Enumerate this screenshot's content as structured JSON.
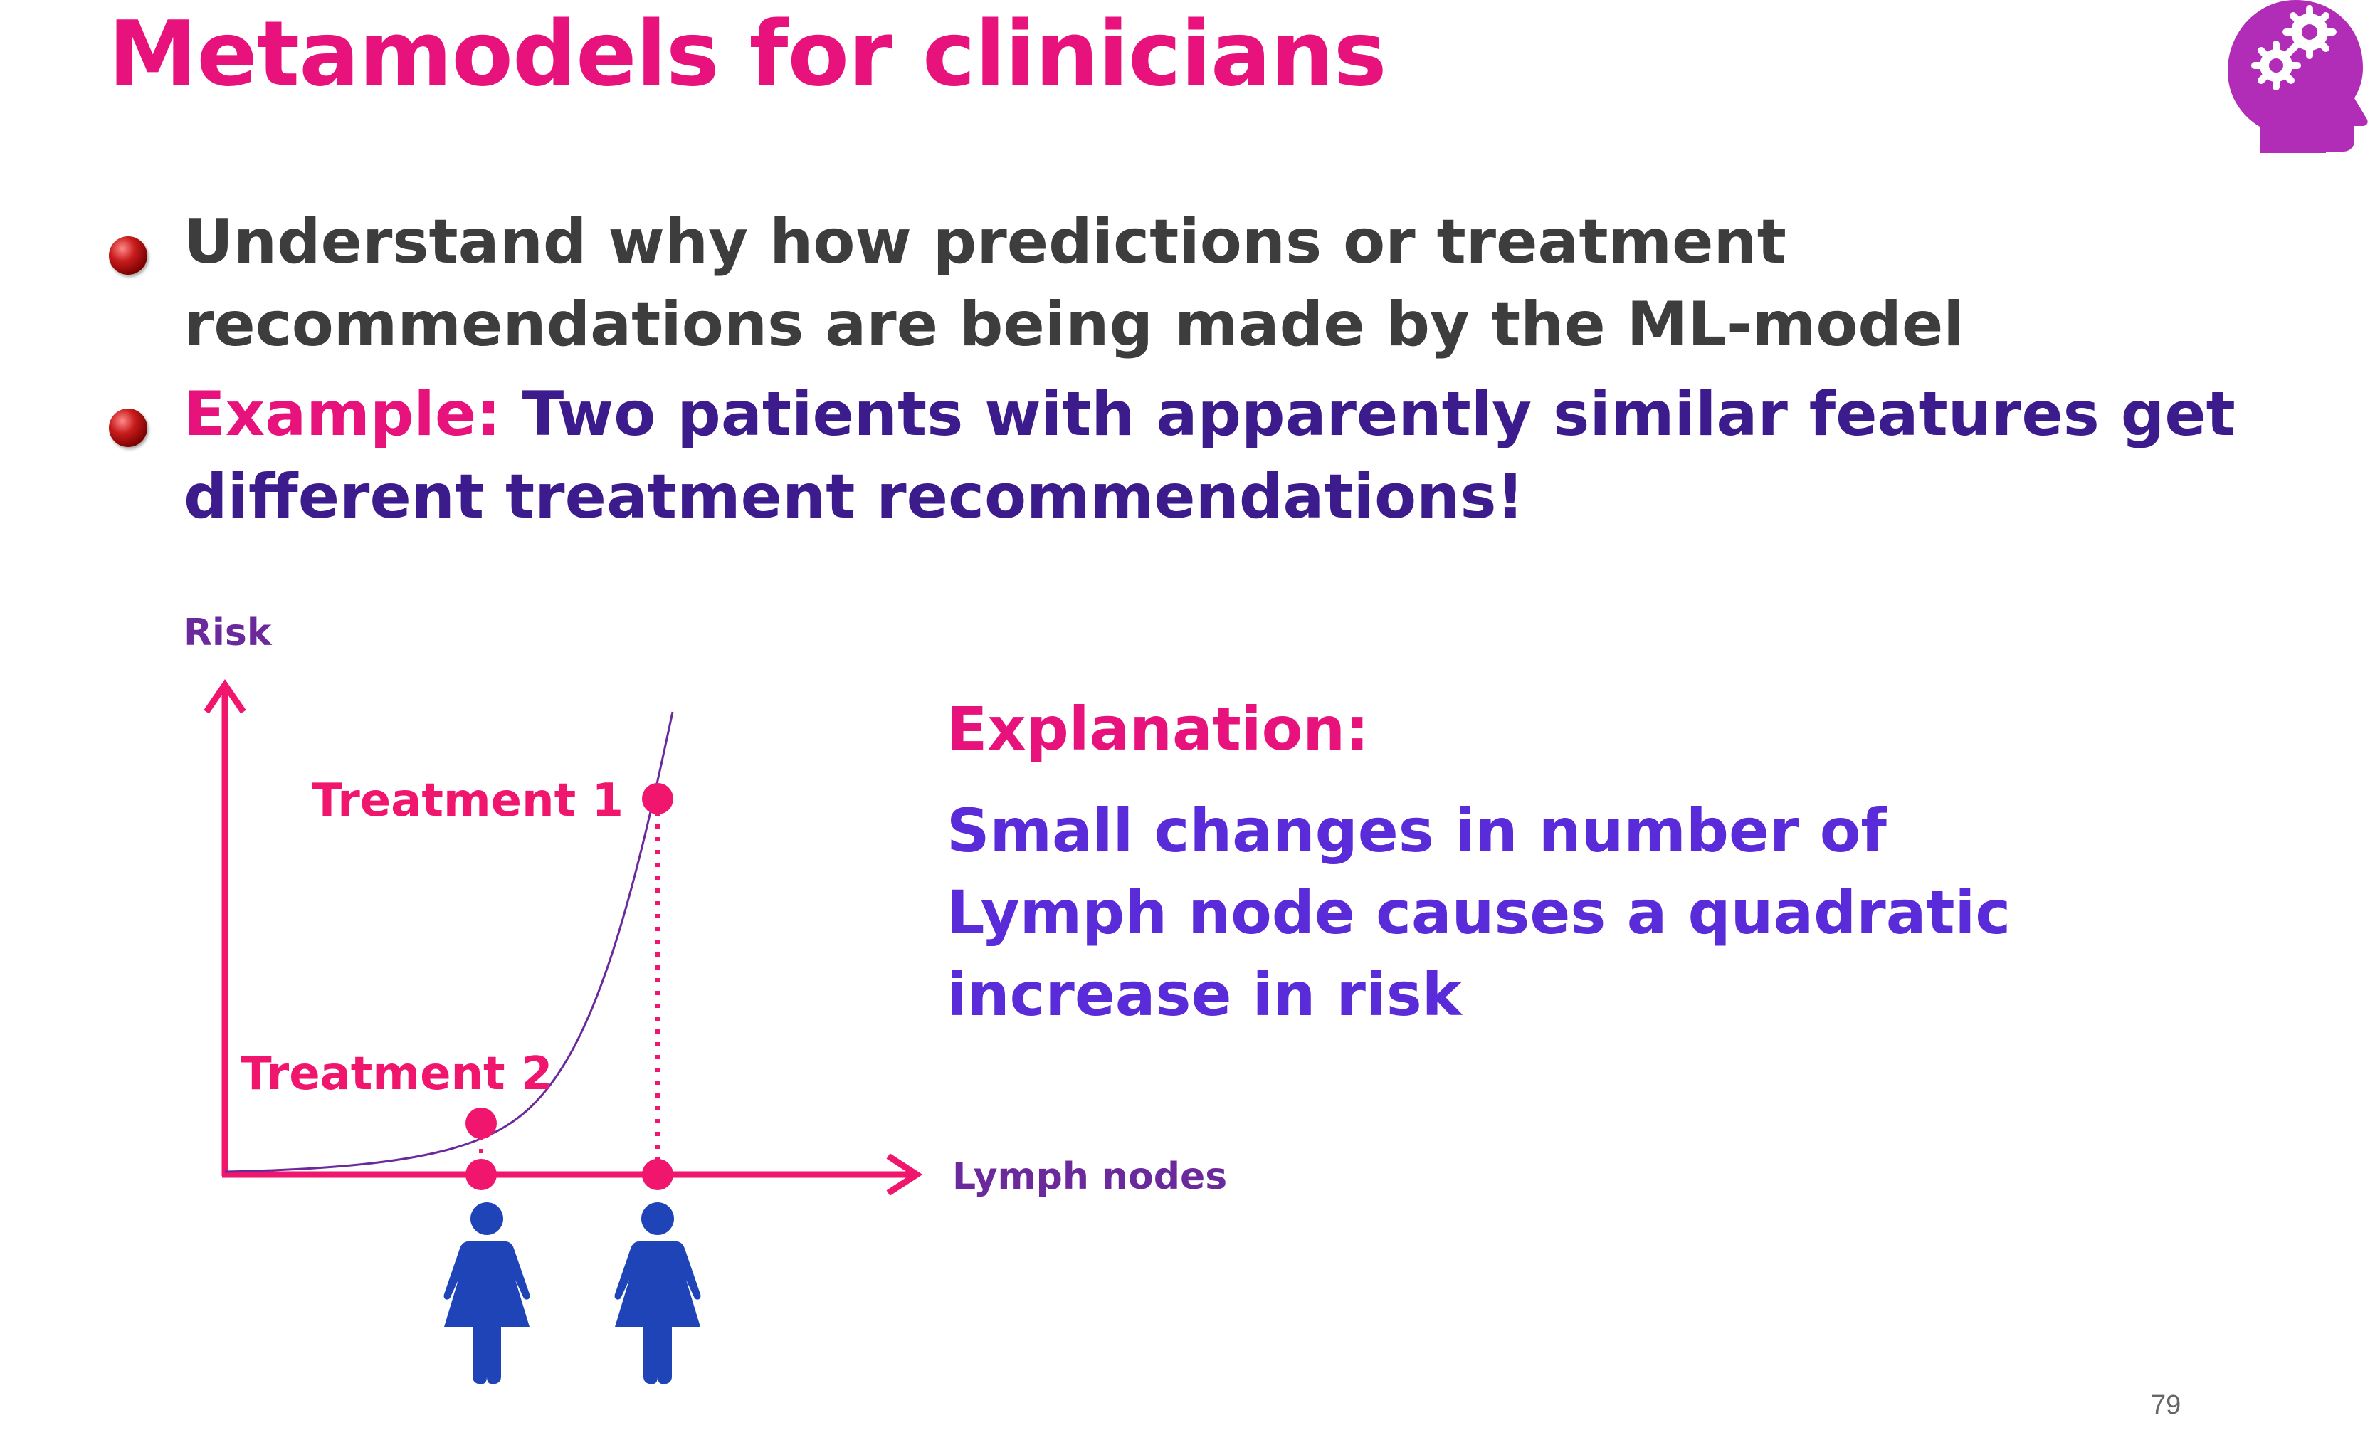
{
  "slide": {
    "title": "Metamodels for clinicians",
    "page_number": "79",
    "icon": "head-with-gears-icon",
    "accent_color": "#e8127c",
    "secondary_color": "#5a2bd8"
  },
  "bullets": [
    {
      "text": "Understand why how predictions or treatment recommendations are being made by the ML-model"
    },
    {
      "lead": "Example:",
      "text": "Two patients with apparently similar features get different treatment recommendations!"
    }
  ],
  "explanation": {
    "title": "Explanation:",
    "body": "Small changes in number of Lymph node causes a quadratic increase in risk"
  },
  "chart_data": {
    "type": "line",
    "ylabel": "Risk",
    "xlabel": "Lymph nodes",
    "curve": "quadratic",
    "points": [
      {
        "label": "Treatment 2",
        "x": 0.37,
        "y": 0.11
      },
      {
        "label": "Treatment 1",
        "x": 0.64,
        "y": 0.84
      }
    ],
    "patients": [
      {
        "icon": "female-person-icon",
        "x": 0.37
      },
      {
        "icon": "female-person-icon",
        "x": 0.64
      }
    ],
    "colors": {
      "axis": "#f0166e",
      "curve": "#6a2a9c",
      "points": "#f0166e",
      "axis_labels": "#6a2a9c",
      "patients": "#1f44b8"
    }
  }
}
